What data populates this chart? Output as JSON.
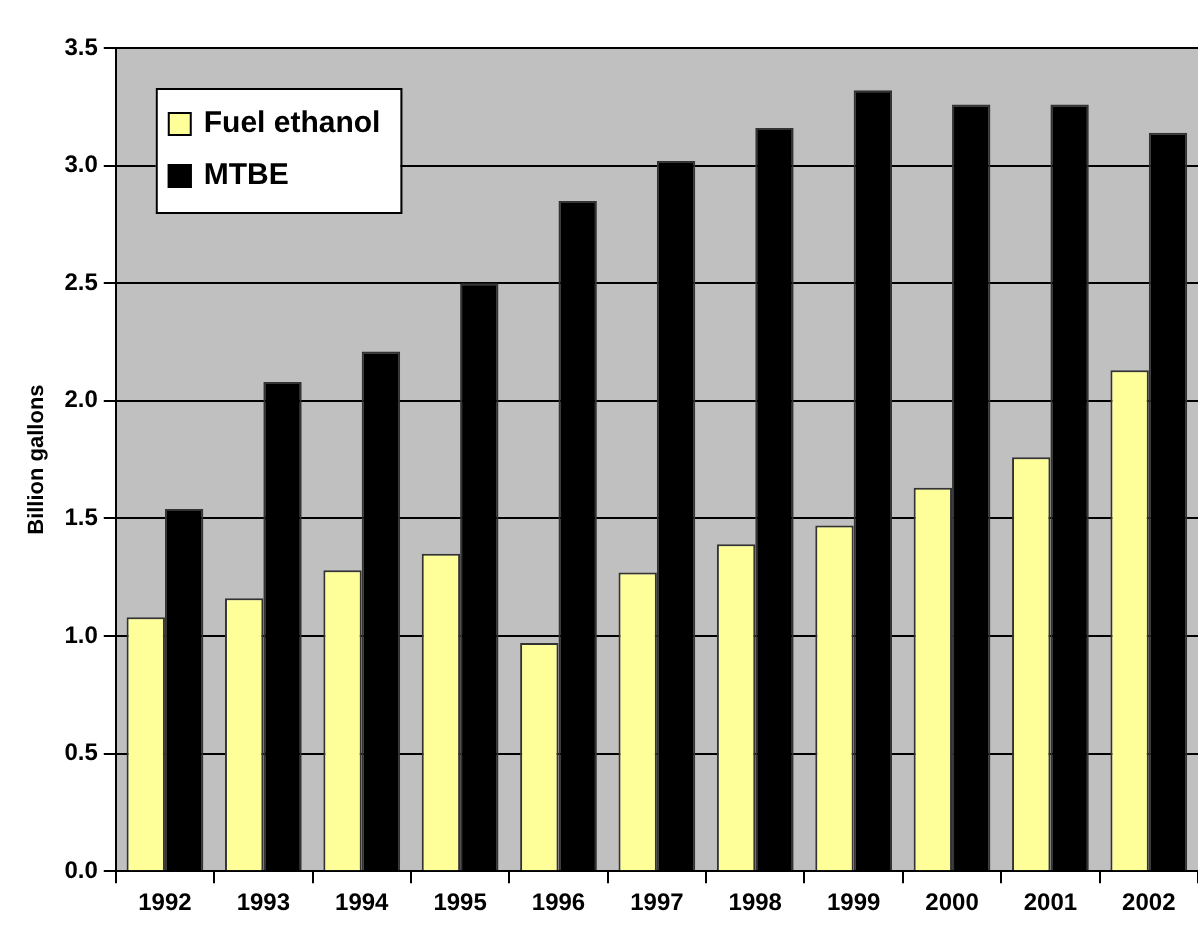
{
  "chart_data": {
    "type": "bar",
    "ylabel": "Billion gallons",
    "categories": [
      "1992",
      "1993",
      "1994",
      "1995",
      "1996",
      "1997",
      "1998",
      "1999",
      "2000",
      "2001",
      "2002"
    ],
    "series": [
      {
        "name": "Fuel ethanol",
        "color": "#ffff99",
        "values": [
          1.08,
          1.16,
          1.28,
          1.35,
          0.97,
          1.27,
          1.39,
          1.47,
          1.63,
          1.76,
          2.13
        ]
      },
      {
        "name": "MTBE",
        "color": "#000000",
        "values": [
          1.54,
          2.08,
          2.21,
          2.5,
          2.85,
          3.02,
          3.16,
          3.32,
          3.26,
          3.26,
          3.14
        ]
      }
    ],
    "ylim": [
      0,
      3.5
    ],
    "yticks": [
      {
        "value": 0,
        "label": "0.0"
      },
      {
        "value": 0.5,
        "label": "0.5"
      },
      {
        "value": 1,
        "label": "1.0"
      },
      {
        "value": 1.5,
        "label": "1.5"
      },
      {
        "value": 2,
        "label": "2.0"
      },
      {
        "value": 2.5,
        "label": "2.5"
      },
      {
        "value": 3,
        "label": "3.0"
      },
      {
        "value": 3.5,
        "label": "3.5"
      }
    ],
    "grid": "y",
    "legend": "top left"
  }
}
